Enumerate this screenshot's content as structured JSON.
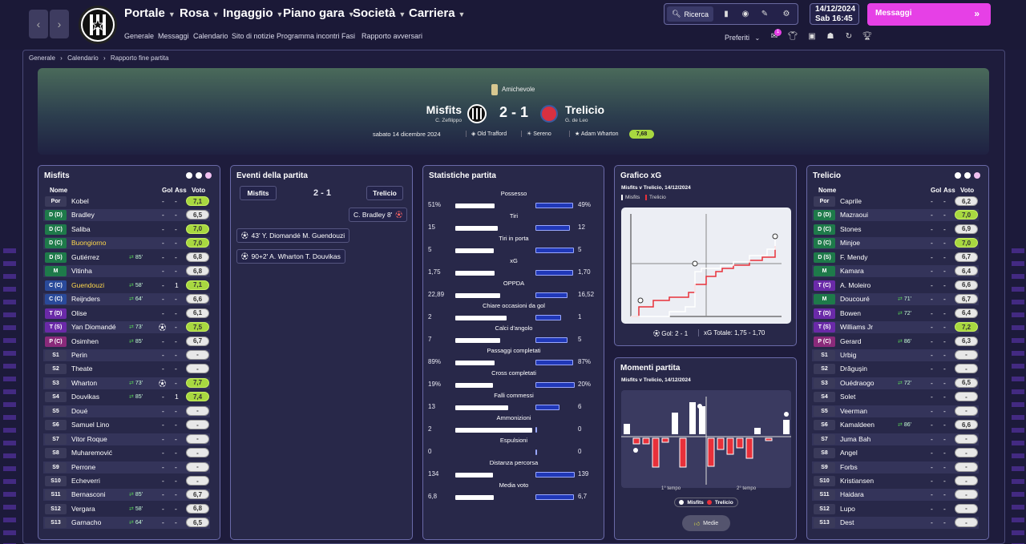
{
  "nav": {
    "back_icon": "chevron-left-icon",
    "forward_icon": "chevron-right-icon"
  },
  "menu": [
    {
      "label": "Portale"
    },
    {
      "label": "Rosa"
    },
    {
      "label": "Ingaggio"
    },
    {
      "label": "Piano gara"
    },
    {
      "label": "Società"
    },
    {
      "label": "Carriera"
    }
  ],
  "submenu": [
    "Generale",
    "Messaggi",
    "Calendario",
    "Sito di notizie",
    "Programma incontri",
    "Fasi",
    "Rapporto avversari"
  ],
  "toolbar": {
    "search_label": "Ricerca",
    "preferiti": "Preferiti",
    "badge": "1"
  },
  "datetime": {
    "date": "14/12/2024",
    "time": "Sab  16:45"
  },
  "messages_label": "Messaggi",
  "breadcrumb": [
    "Generale",
    "Calendario",
    "Rapporto fine partita"
  ],
  "match": {
    "competition": "Amichevole",
    "home": "Misfits",
    "home_manager": "C. Zefilippo",
    "away": "Trelicio",
    "away_manager": "G. de Leo",
    "score": "2 - 1",
    "date": "sabato 14 dicembre 2024",
    "stadium": "Old Trafford",
    "weather": "Sereno",
    "mvp": "Adam Wharton",
    "mvp_rating": "7,68"
  },
  "home_panel": {
    "title": "Misfits",
    "h_name": "Nome",
    "h_gol": "Gol",
    "h_ass": "Ass",
    "h_voto": "Voto",
    "players": [
      {
        "pos": "Por",
        "color": "#3a3a5a",
        "name": "Kobel",
        "sub": "",
        "gol": "-",
        "ass": "-",
        "voto": "7,1",
        "hi": true
      },
      {
        "pos": "D (D)",
        "color": "#1e7a4a",
        "name": "Bradley",
        "sub": "",
        "gol": "-",
        "ass": "-",
        "voto": "6,5",
        "hi": false
      },
      {
        "pos": "D (C)",
        "color": "#1e7a4a",
        "name": "Saliba",
        "sub": "",
        "gol": "-",
        "ass": "-",
        "voto": "7,0",
        "hi": true
      },
      {
        "pos": "D (C)",
        "color": "#1e7a4a",
        "name": "Buongiorno",
        "sub": "",
        "gol": "-",
        "ass": "-",
        "voto": "7,0",
        "hi": true,
        "yellow": true
      },
      {
        "pos": "D (S)",
        "color": "#1e7a4a",
        "name": "Gutiérrez",
        "sub": "85'",
        "gol": "-",
        "ass": "-",
        "voto": "6,8",
        "hi": false
      },
      {
        "pos": "M",
        "color": "#1e7a4a",
        "name": "Vitinha",
        "sub": "",
        "gol": "-",
        "ass": "-",
        "voto": "6,8",
        "hi": false
      },
      {
        "pos": "C (C)",
        "color": "#2a4a9a",
        "name": "Guendouzi",
        "sub": "58'",
        "gol": "-",
        "ass": "1",
        "voto": "7,1",
        "hi": true,
        "yellow": true
      },
      {
        "pos": "C (C)",
        "color": "#2a4a9a",
        "name": "Reijnders",
        "sub": "64'",
        "gol": "-",
        "ass": "-",
        "voto": "6,6",
        "hi": false
      },
      {
        "pos": "T (D)",
        "color": "#6a2aa8",
        "name": "Olise",
        "sub": "",
        "gol": "-",
        "ass": "-",
        "voto": "6,1",
        "hi": false
      },
      {
        "pos": "T (S)",
        "color": "#6a2aa8",
        "name": "Yan Diomandé",
        "sub": "73'",
        "gol": "-",
        "ass": "-",
        "voto": "7,5",
        "hi": true,
        "ev": "⚽"
      },
      {
        "pos": "P (C)",
        "color": "#8a2a7a",
        "name": "Osimhen",
        "sub": "85'",
        "gol": "-",
        "ass": "-",
        "voto": "6,7",
        "hi": false
      },
      {
        "pos": "S1",
        "color": "#3a3a5a",
        "name": "Perin",
        "sub": "",
        "gol": "-",
        "ass": "-",
        "voto": "-",
        "hi": false
      },
      {
        "pos": "S2",
        "color": "#3a3a5a",
        "name": "Theate",
        "sub": "",
        "gol": "-",
        "ass": "-",
        "voto": "-",
        "hi": false
      },
      {
        "pos": "S3",
        "color": "#3a3a5a",
        "name": "Wharton",
        "sub": "73'",
        "gol": "-",
        "ass": "-",
        "voto": "7,7",
        "hi": true,
        "ev": "⚽"
      },
      {
        "pos": "S4",
        "color": "#3a3a5a",
        "name": "Douvikas",
        "sub": "85'",
        "gol": "-",
        "ass": "1",
        "voto": "7,4",
        "hi": true
      },
      {
        "pos": "S5",
        "color": "#3a3a5a",
        "name": "Doué",
        "sub": "",
        "gol": "-",
        "ass": "-",
        "voto": "-",
        "hi": false
      },
      {
        "pos": "S6",
        "color": "#3a3a5a",
        "name": "Samuel Lino",
        "sub": "",
        "gol": "-",
        "ass": "-",
        "voto": "-",
        "hi": false
      },
      {
        "pos": "S7",
        "color": "#3a3a5a",
        "name": "Vitor Roque",
        "sub": "",
        "gol": "-",
        "ass": "-",
        "voto": "-",
        "hi": false
      },
      {
        "pos": "S8",
        "color": "#3a3a5a",
        "name": "Muharemović",
        "sub": "",
        "gol": "-",
        "ass": "-",
        "voto": "-",
        "hi": false
      },
      {
        "pos": "S9",
        "color": "#3a3a5a",
        "name": "Perrone",
        "sub": "",
        "gol": "-",
        "ass": "-",
        "voto": "-",
        "hi": false
      },
      {
        "pos": "S10",
        "color": "#3a3a5a",
        "name": "Echeverri",
        "sub": "",
        "gol": "-",
        "ass": "-",
        "voto": "-",
        "hi": false
      },
      {
        "pos": "S11",
        "color": "#3a3a5a",
        "name": "Bernasconi",
        "sub": "85'",
        "gol": "-",
        "ass": "-",
        "voto": "6,7",
        "hi": false
      },
      {
        "pos": "S12",
        "color": "#3a3a5a",
        "name": "Vergara",
        "sub": "58'",
        "gol": "-",
        "ass": "-",
        "voto": "6,8",
        "hi": false
      },
      {
        "pos": "S13",
        "color": "#3a3a5a",
        "name": "Garnacho",
        "sub": "64'",
        "gol": "-",
        "ass": "-",
        "voto": "6,5",
        "hi": false
      }
    ]
  },
  "events_panel": {
    "title": "Eventi della partita",
    "home": "Misfits",
    "away": "Trelicio",
    "score": "2 - 1",
    "events": [
      {
        "side": "away",
        "text": "C. Bradley  8'",
        "icon": "own-goal"
      },
      {
        "side": "home",
        "text": "43'  Y. Diomandé  M. Guendouzi",
        "icon": "goal"
      },
      {
        "side": "home",
        "text": "90+2'  A. Wharton  T. Douvikas",
        "icon": "goal"
      }
    ]
  },
  "stats_panel": {
    "title": "Statistiche partita",
    "stats": [
      {
        "label": "Possesso",
        "l": "51%",
        "r": "49%",
        "lv": 51,
        "rv": 49
      },
      {
        "label": "Tiri",
        "l": "15",
        "r": "12",
        "lv": 15,
        "rv": 12
      },
      {
        "label": "Tiri in porta",
        "l": "5",
        "r": "5",
        "lv": 5,
        "rv": 5
      },
      {
        "label": "xG",
        "l": "1,75",
        "r": "1,70",
        "lv": 1.75,
        "rv": 1.7
      },
      {
        "label": "OPPDA",
        "l": "22,89",
        "r": "16,52",
        "lv": 22.89,
        "rv": 16.52
      },
      {
        "label": "Chiare occasioni da gol",
        "l": "2",
        "r": "1",
        "lv": 2,
        "rv": 1
      },
      {
        "label": "Calci d'angolo",
        "l": "7",
        "r": "5",
        "lv": 7,
        "rv": 5
      },
      {
        "label": "Passaggi completati",
        "l": "89%",
        "r": "87%",
        "lv": 89,
        "rv": 87
      },
      {
        "label": "Cross completati",
        "l": "19%",
        "r": "20%",
        "lv": 19,
        "rv": 20
      },
      {
        "label": "Falli commessi",
        "l": "13",
        "r": "6",
        "lv": 13,
        "rv": 6
      },
      {
        "label": "Ammonizioni",
        "l": "2",
        "r": "0",
        "lv": 2,
        "rv": 0
      },
      {
        "label": "Espulsioni",
        "l": "0",
        "r": "0",
        "lv": 0,
        "rv": 0
      },
      {
        "label": "Distanza percorsa",
        "l": "134",
        "r": "139",
        "lv": 134,
        "rv": 139
      },
      {
        "label": "Media voto",
        "l": "6,8",
        "r": "6,7",
        "lv": 6.8,
        "rv": 6.7
      }
    ]
  },
  "xg_panel": {
    "title": "Grafico xG",
    "subtitle": "Misfits v Trelicio, 14/12/2024",
    "legend_home": "Misfits",
    "legend_away": "Trelicio",
    "footer_gol": "Gol:  2 - 1",
    "footer_xg": "xG  Totale:  1,75  -  1,70"
  },
  "momentum_panel": {
    "title": "Momenti partita",
    "subtitle": "Misfits v Trelicio, 14/12/2024",
    "first_half": "1° tempo",
    "second_half": "2° tempo",
    "legend_home": "Misfits",
    "legend_away": "Trelicio",
    "button": "Medie"
  },
  "away_panel": {
    "title": "Trelicio",
    "h_name": "Nome",
    "h_gol": "Gol",
    "h_ass": "Ass",
    "h_voto": "Voto",
    "players": [
      {
        "pos": "Por",
        "color": "#3a3a5a",
        "name": "Caprile",
        "sub": "",
        "gol": "-",
        "ass": "-",
        "voto": "6,2",
        "hi": false
      },
      {
        "pos": "D (D)",
        "color": "#1e7a4a",
        "name": "Mazraoui",
        "sub": "",
        "gol": "-",
        "ass": "-",
        "voto": "7,0",
        "hi": true
      },
      {
        "pos": "D (C)",
        "color": "#1e7a4a",
        "name": "Stones",
        "sub": "",
        "gol": "-",
        "ass": "-",
        "voto": "6,9",
        "hi": false
      },
      {
        "pos": "D (C)",
        "color": "#1e7a4a",
        "name": "Minjoe",
        "sub": "",
        "gol": "-",
        "ass": "-",
        "voto": "7,0",
        "hi": true
      },
      {
        "pos": "D (S)",
        "color": "#1e7a4a",
        "name": "F. Mendy",
        "sub": "",
        "gol": "-",
        "ass": "-",
        "voto": "6,7",
        "hi": false
      },
      {
        "pos": "M",
        "color": "#1e7a4a",
        "name": "Kamara",
        "sub": "",
        "gol": "-",
        "ass": "-",
        "voto": "6,4",
        "hi": false
      },
      {
        "pos": "T (C)",
        "color": "#6a2aa8",
        "name": "A. Moleiro",
        "sub": "",
        "gol": "-",
        "ass": "-",
        "voto": "6,6",
        "hi": false
      },
      {
        "pos": "M",
        "color": "#1e7a4a",
        "name": "Doucouré",
        "sub": "71'",
        "gol": "-",
        "ass": "-",
        "voto": "6,7",
        "hi": false
      },
      {
        "pos": "T (D)",
        "color": "#6a2aa8",
        "name": "Bowen",
        "sub": "72'",
        "gol": "-",
        "ass": "-",
        "voto": "6,4",
        "hi": false
      },
      {
        "pos": "T (S)",
        "color": "#6a2aa8",
        "name": "Williams Jr",
        "sub": "",
        "gol": "-",
        "ass": "-",
        "voto": "7,2",
        "hi": true
      },
      {
        "pos": "P (C)",
        "color": "#8a2a7a",
        "name": "Gerard",
        "sub": "86'",
        "gol": "-",
        "ass": "-",
        "voto": "6,3",
        "hi": false
      },
      {
        "pos": "S1",
        "color": "#3a3a5a",
        "name": "Urbig",
        "sub": "",
        "gol": "-",
        "ass": "-",
        "voto": "-",
        "hi": false
      },
      {
        "pos": "S2",
        "color": "#3a3a5a",
        "name": "Drăgușin",
        "sub": "",
        "gol": "-",
        "ass": "-",
        "voto": "-",
        "hi": false
      },
      {
        "pos": "S3",
        "color": "#3a3a5a",
        "name": "Ouédraogo",
        "sub": "72'",
        "gol": "-",
        "ass": "-",
        "voto": "6,5",
        "hi": false
      },
      {
        "pos": "S4",
        "color": "#3a3a5a",
        "name": "Solet",
        "sub": "",
        "gol": "-",
        "ass": "-",
        "voto": "-",
        "hi": false
      },
      {
        "pos": "S5",
        "color": "#3a3a5a",
        "name": "Veerman",
        "sub": "",
        "gol": "-",
        "ass": "-",
        "voto": "-",
        "hi": false
      },
      {
        "pos": "S6",
        "color": "#3a3a5a",
        "name": "Kamaldeen",
        "sub": "86'",
        "gol": "-",
        "ass": "-",
        "voto": "6,6",
        "hi": false
      },
      {
        "pos": "S7",
        "color": "#3a3a5a",
        "name": "Juma Bah",
        "sub": "",
        "gol": "-",
        "ass": "-",
        "voto": "-",
        "hi": false
      },
      {
        "pos": "S8",
        "color": "#3a3a5a",
        "name": "Angel",
        "sub": "",
        "gol": "-",
        "ass": "-",
        "voto": "-",
        "hi": false
      },
      {
        "pos": "S9",
        "color": "#3a3a5a",
        "name": "Forbs",
        "sub": "",
        "gol": "-",
        "ass": "-",
        "voto": "-",
        "hi": false
      },
      {
        "pos": "S10",
        "color": "#3a3a5a",
        "name": "Kristiansen",
        "sub": "",
        "gol": "-",
        "ass": "-",
        "voto": "-",
        "hi": false
      },
      {
        "pos": "S11",
        "color": "#3a3a5a",
        "name": "Haidara",
        "sub": "",
        "gol": "-",
        "ass": "-",
        "voto": "-",
        "hi": false
      },
      {
        "pos": "S12",
        "color": "#3a3a5a",
        "name": "Lupo",
        "sub": "",
        "gol": "-",
        "ass": "-",
        "voto": "-",
        "hi": false
      },
      {
        "pos": "S13",
        "color": "#3a3a5a",
        "name": "Dest",
        "sub": "",
        "gol": "-",
        "ass": "-",
        "voto": "-",
        "hi": false
      }
    ]
  },
  "colors": {
    "accent": "#e640e6",
    "home": "#ffffff",
    "away": "#e8303a",
    "rating_hi": "#a8d840"
  }
}
